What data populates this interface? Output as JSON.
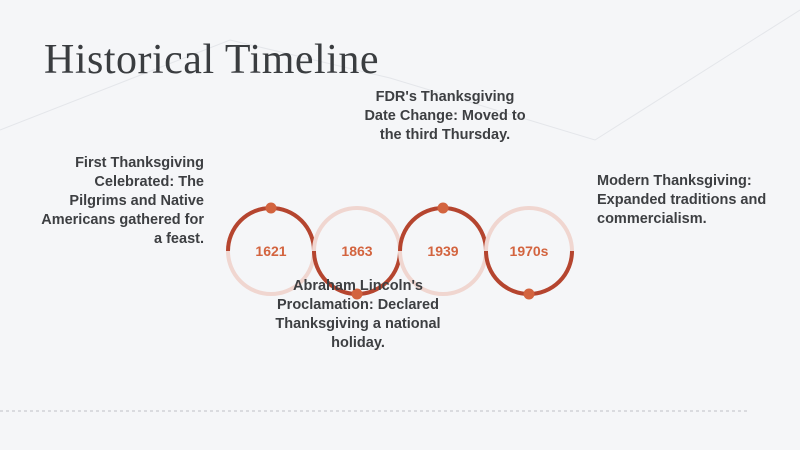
{
  "slide": {
    "title": "Historical Timeline",
    "accent_color": "#b5452f",
    "ring_color": "#f0d6d0",
    "events": [
      {
        "year": "1621",
        "description": "First Thanksgiving Celebrated: The Pilgrims and Native Americans gathered for a feast."
      },
      {
        "year": "1863",
        "description": "Abraham Lincoln's Proclamation: Declared Thanksgiving a national holiday."
      },
      {
        "year": "1939",
        "description": "FDR's Thanksgiving Date Change: Moved to the third Thursday."
      },
      {
        "year": "1970s",
        "description": "Modern Thanksgiving: Expanded traditions and commercialism."
      }
    ]
  }
}
